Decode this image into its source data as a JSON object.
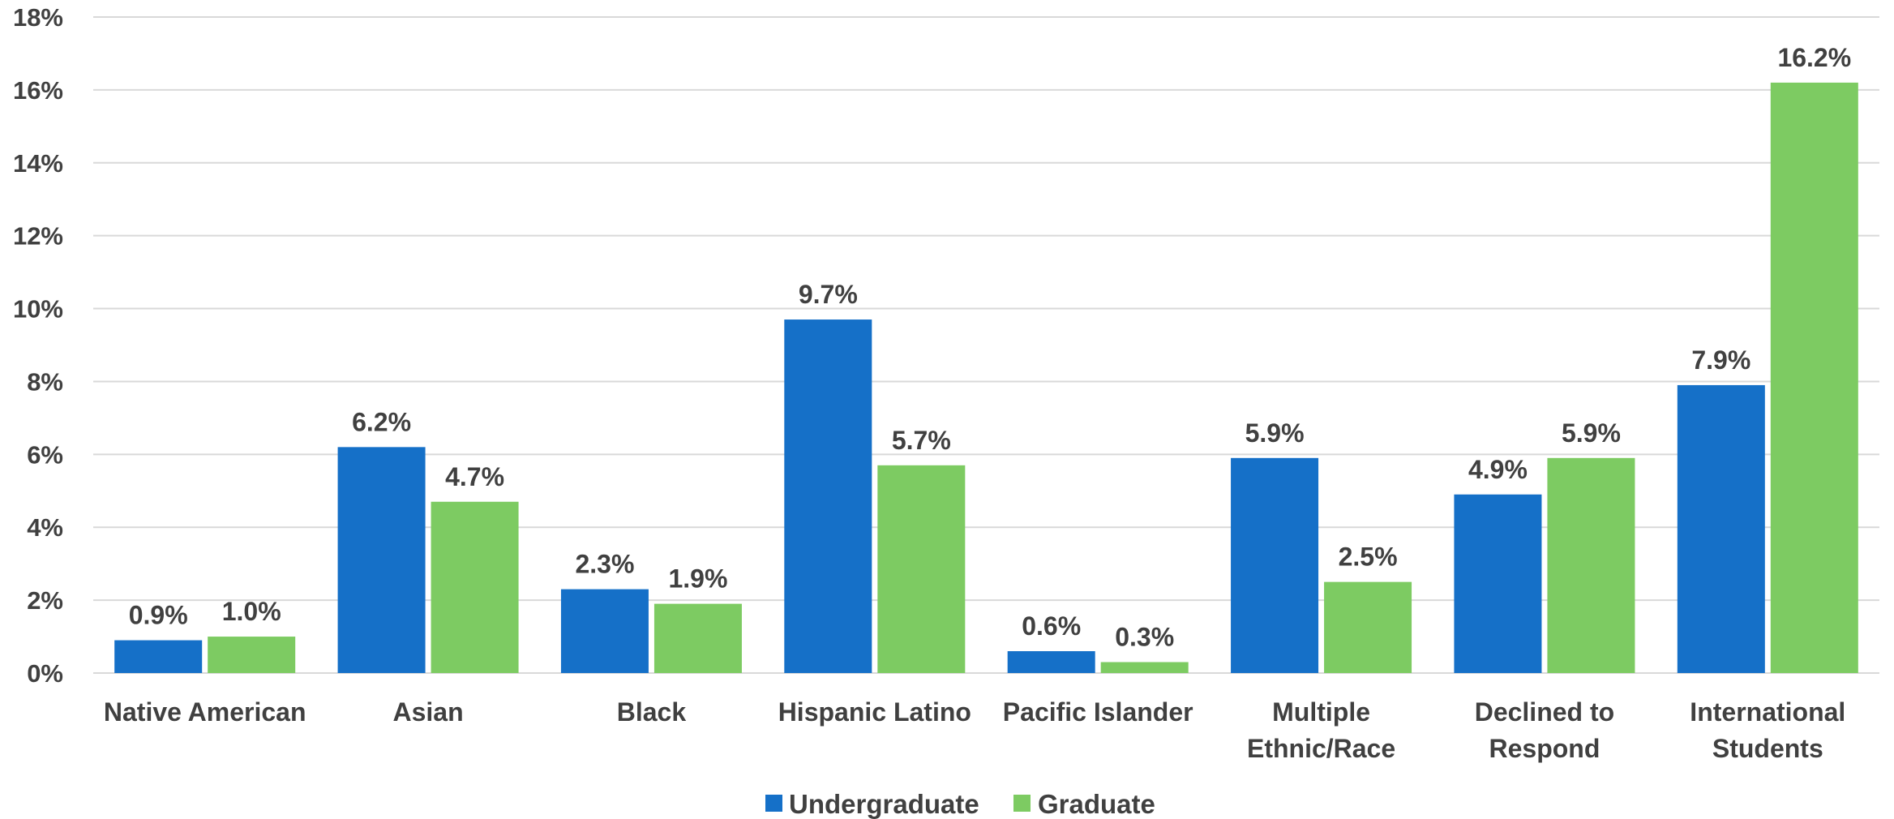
{
  "chart_data": {
    "type": "bar",
    "categories": [
      [
        "Native American"
      ],
      [
        "Asian"
      ],
      [
        "Black"
      ],
      [
        "Hispanic Latino"
      ],
      [
        "Pacific Islander"
      ],
      [
        "Multiple",
        "Ethnic/Race"
      ],
      [
        "Declined to",
        "Respond"
      ],
      [
        "International",
        "Students"
      ]
    ],
    "series": [
      {
        "name": "Undergraduate",
        "color": "#1570c8",
        "values": [
          0.9,
          6.2,
          2.3,
          9.7,
          0.6,
          5.9,
          4.9,
          7.9
        ],
        "labels": [
          "0.9%",
          "6.2%",
          "2.3%",
          "9.7%",
          "0.6%",
          "5.9%",
          "4.9%",
          "7.9%"
        ]
      },
      {
        "name": "Graduate",
        "color": "#7dcb62",
        "values": [
          1.0,
          4.7,
          1.9,
          5.7,
          0.3,
          2.5,
          5.9,
          16.2
        ],
        "labels": [
          "1.0%",
          "4.7%",
          "1.9%",
          "5.7%",
          "0.3%",
          "2.5%",
          "5.9%",
          "16.2%"
        ]
      }
    ],
    "ylim": [
      0,
      18
    ],
    "yticks": [
      {
        "value": 0,
        "label": "0%"
      },
      {
        "value": 2,
        "label": "2%"
      },
      {
        "value": 4,
        "label": "4%"
      },
      {
        "value": 6,
        "label": "6%"
      },
      {
        "value": 8,
        "label": "8%"
      },
      {
        "value": 10,
        "label": "10%"
      },
      {
        "value": 12,
        "label": "12%"
      },
      {
        "value": 14,
        "label": "14%"
      },
      {
        "value": 16,
        "label": "16%"
      },
      {
        "value": 18,
        "label": "18%"
      }
    ],
    "grid": true,
    "legend_position": "bottom"
  }
}
